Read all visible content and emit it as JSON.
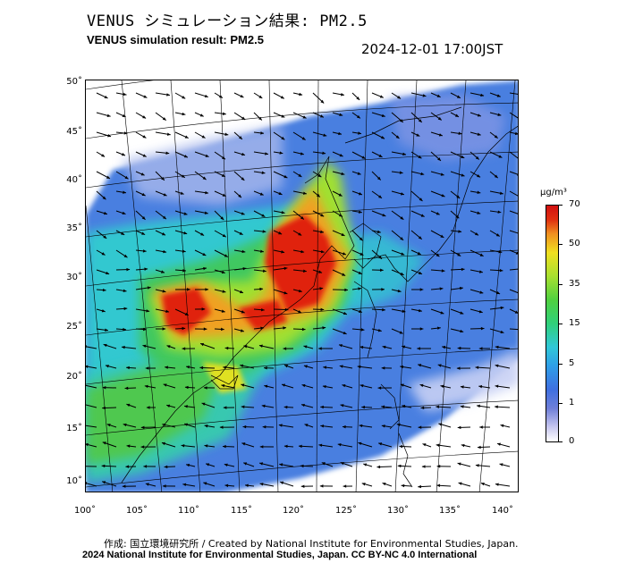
{
  "header": {
    "title_ja": "VENUS シミュレーション結果: PM2.5",
    "title_en": "VENUS simulation result: PM2.5",
    "datetime": "2024-12-01 17:00JST"
  },
  "map": {
    "lat_labels": [
      "50˚",
      "45˚",
      "40˚",
      "35˚",
      "30˚",
      "25˚",
      "20˚",
      "15˚",
      "10˚"
    ],
    "lon_labels": [
      "100˚",
      "105˚",
      "110˚",
      "115˚",
      "120˚",
      "125˚",
      "130˚",
      "135˚",
      "140˚"
    ],
    "colors": {
      "ocean_bg": "#4a7fe0",
      "low": "#3a6fe0",
      "medium_low": "#30c8d0",
      "medium": "#40c860",
      "medium_high": "#a0e030",
      "high": "#f0a020",
      "very_high": "#e02010",
      "land_low": "#a8b8ec"
    },
    "wind_icon": "wind-arrow-icon"
  },
  "colorbar": {
    "unit": "μg/m³",
    "ticks": [
      "70",
      "50",
      "35",
      "15",
      "5",
      "1",
      "0"
    ]
  },
  "credits": {
    "ja": "作成: 国立環境研究所 / Created by National Institute for Environmental Studies, Japan.",
    "en": "2024 National Institute for Environmental Studies, Japan. CC BY-NC 4.0 International"
  }
}
